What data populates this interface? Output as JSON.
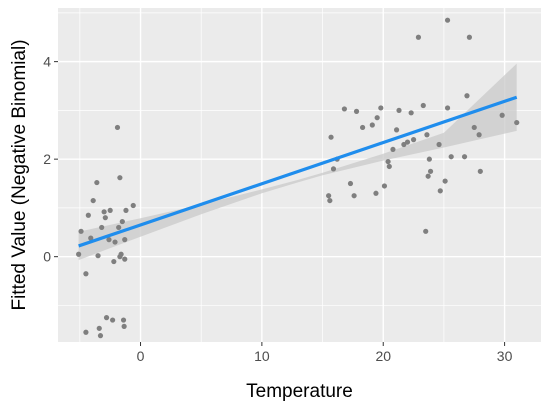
{
  "chart_data": {
    "type": "scatter",
    "title": "",
    "xlabel": "Temperature",
    "ylabel": "Fitted Value (Negative Binomial)",
    "xlim": [
      -6.8,
      33
    ],
    "ylim": [
      -1.75,
      5.1
    ],
    "x_ticks": [
      0,
      10,
      20,
      30
    ],
    "y_ticks": [
      0,
      2,
      4
    ],
    "grid": true,
    "legend": "none",
    "colors": {
      "panel": "#ebebeb",
      "grid": "#ffffff",
      "point": "#7f7f7f",
      "line": "#1f8ded",
      "band": "#c9c9c9",
      "text": "#000000",
      "tick_text": "#4d4d4d",
      "tick_mark": "#333333"
    },
    "points": [
      {
        "x": -5.1,
        "y": 0.05
      },
      {
        "x": -4.9,
        "y": 0.52
      },
      {
        "x": -4.5,
        "y": -0.35
      },
      {
        "x": -4.5,
        "y": -1.55
      },
      {
        "x": -4.3,
        "y": 0.85
      },
      {
        "x": -4.1,
        "y": 0.38
      },
      {
        "x": -3.9,
        "y": 1.15
      },
      {
        "x": -3.6,
        "y": 1.52
      },
      {
        "x": -3.5,
        "y": 0.02
      },
      {
        "x": -3.4,
        "y": -1.47
      },
      {
        "x": -3.3,
        "y": -1.62
      },
      {
        "x": -3.2,
        "y": 0.6
      },
      {
        "x": -3.0,
        "y": 0.92
      },
      {
        "x": -2.9,
        "y": 0.8
      },
      {
        "x": -2.8,
        "y": -1.25
      },
      {
        "x": -2.6,
        "y": 0.35
      },
      {
        "x": -2.5,
        "y": 0.95
      },
      {
        "x": -2.3,
        "y": -1.3
      },
      {
        "x": -2.2,
        "y": -0.1
      },
      {
        "x": -2.1,
        "y": 0.3
      },
      {
        "x": -1.9,
        "y": 2.65
      },
      {
        "x": -1.8,
        "y": 0.6
      },
      {
        "x": -1.7,
        "y": 1.62
      },
      {
        "x": -1.7,
        "y": 0.0
      },
      {
        "x": -1.6,
        "y": 0.05
      },
      {
        "x": -1.5,
        "y": 0.72
      },
      {
        "x": -1.4,
        "y": -1.3
      },
      {
        "x": -1.35,
        "y": -1.43
      },
      {
        "x": -1.3,
        "y": 0.35
      },
      {
        "x": -1.3,
        "y": -0.05
      },
      {
        "x": -1.2,
        "y": 0.95
      },
      {
        "x": -0.6,
        "y": 1.05
      },
      {
        "x": 15.5,
        "y": 1.25
      },
      {
        "x": 15.6,
        "y": 1.15
      },
      {
        "x": 15.7,
        "y": 2.45
      },
      {
        "x": 15.9,
        "y": 1.8
      },
      {
        "x": 16.2,
        "y": 2.0
      },
      {
        "x": 16.8,
        "y": 3.03
      },
      {
        "x": 17.3,
        "y": 1.5
      },
      {
        "x": 17.6,
        "y": 1.25
      },
      {
        "x": 17.8,
        "y": 2.98
      },
      {
        "x": 18.3,
        "y": 2.65
      },
      {
        "x": 19.1,
        "y": 2.7
      },
      {
        "x": 19.4,
        "y": 1.3
      },
      {
        "x": 19.5,
        "y": 2.85
      },
      {
        "x": 19.8,
        "y": 3.05
      },
      {
        "x": 20.1,
        "y": 1.45
      },
      {
        "x": 20.4,
        "y": 1.95
      },
      {
        "x": 20.5,
        "y": 1.85
      },
      {
        "x": 20.8,
        "y": 2.2
      },
      {
        "x": 21.1,
        "y": 2.6
      },
      {
        "x": 21.3,
        "y": 3.0
      },
      {
        "x": 21.7,
        "y": 2.3
      },
      {
        "x": 22.0,
        "y": 2.35
      },
      {
        "x": 22.3,
        "y": 2.95
      },
      {
        "x": 22.5,
        "y": 2.4
      },
      {
        "x": 22.9,
        "y": 4.5
      },
      {
        "x": 23.3,
        "y": 3.1
      },
      {
        "x": 23.5,
        "y": 0.52
      },
      {
        "x": 23.6,
        "y": 2.5
      },
      {
        "x": 23.7,
        "y": 1.65
      },
      {
        "x": 23.8,
        "y": 2.0
      },
      {
        "x": 23.9,
        "y": 1.75
      },
      {
        "x": 24.6,
        "y": 2.3
      },
      {
        "x": 24.7,
        "y": 1.35
      },
      {
        "x": 25.1,
        "y": 1.55
      },
      {
        "x": 25.3,
        "y": 4.85
      },
      {
        "x": 25.3,
        "y": 3.05
      },
      {
        "x": 25.6,
        "y": 2.05
      },
      {
        "x": 26.7,
        "y": 2.05
      },
      {
        "x": 26.9,
        "y": 3.3
      },
      {
        "x": 27.1,
        "y": 4.5
      },
      {
        "x": 27.5,
        "y": 2.65
      },
      {
        "x": 27.9,
        "y": 2.5
      },
      {
        "x": 28.0,
        "y": 1.75
      },
      {
        "x": 29.8,
        "y": 2.9
      },
      {
        "x": 31.0,
        "y": 2.75
      }
    ],
    "fit_line": {
      "x": [
        -5.1,
        31.0
      ],
      "y": [
        0.22,
        3.27
      ]
    },
    "confidence_band": {
      "x": [
        -5.1,
        0,
        5,
        10,
        12.9,
        15,
        20,
        25,
        31.0
      ],
      "lower": [
        -0.07,
        0.41,
        0.87,
        1.3,
        1.52,
        1.67,
        1.97,
        2.24,
        2.58
      ],
      "upper": [
        0.51,
        0.79,
        1.07,
        1.38,
        1.57,
        1.72,
        2.11,
        2.54,
        3.96
      ]
    }
  }
}
